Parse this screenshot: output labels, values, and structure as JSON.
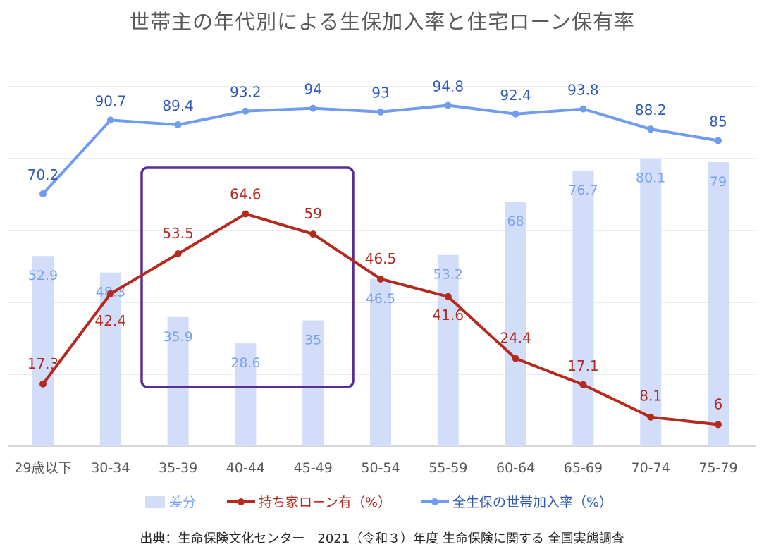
{
  "title": "世帯主の年代別による生保加入率と住宅ローン保有率",
  "source": "出典：生命保険文化センター　2021（令和３）年度 生命保険に関する 全国実態調査",
  "colors": {
    "bar": "#d1ddf9",
    "bar_label": "#7aa3ee",
    "loan_line": "#b52a1f",
    "insurance_line": "#6f9cf0",
    "insurance_label": "#2f59b8",
    "highlight_box": "#5b2d8e"
  },
  "chart_data": {
    "type": "bar",
    "categories": [
      "29歳以下",
      "30-34",
      "35-39",
      "40-44",
      "45-49",
      "50-54",
      "55-59",
      "60-64",
      "65-69",
      "70-74",
      "75-79"
    ],
    "ylim": [
      0,
      100
    ],
    "grid": true,
    "legend_position": "bottom",
    "highlight_categories": [
      "35-39",
      "40-44",
      "45-49"
    ],
    "series": [
      {
        "name": "差分",
        "kind": "bar",
        "values": [
          52.9,
          48.3,
          35.9,
          28.6,
          35,
          46.5,
          53.2,
          68,
          76.7,
          80.1,
          79
        ]
      },
      {
        "name": "持ち家ローン有（%）",
        "kind": "line",
        "values": [
          17.3,
          42.4,
          53.5,
          64.6,
          59,
          46.5,
          41.6,
          24.4,
          17.1,
          8.1,
          6
        ]
      },
      {
        "name": "全生保の世帯加入率（%）",
        "kind": "line",
        "values": [
          70.2,
          90.7,
          89.4,
          93.2,
          94,
          93,
          94.8,
          92.4,
          93.8,
          88.2,
          85
        ]
      }
    ]
  }
}
